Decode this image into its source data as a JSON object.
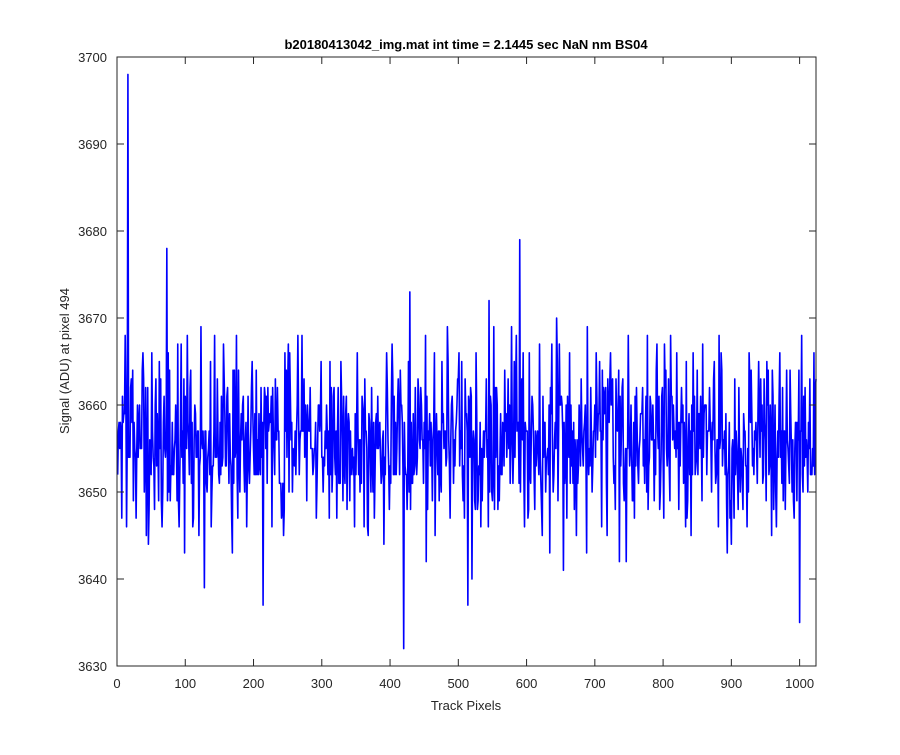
{
  "figure": {
    "background": "#ffffff"
  },
  "chart_data": {
    "type": "line",
    "title": "b20180413042_img.mat int time = 2.1445 sec  NaN nm BS04",
    "xlabel": "Track Pixels",
    "ylabel": "Signal (ADU) at pixel 494",
    "xlim": [
      0,
      1024
    ],
    "ylim": [
      3630,
      3700
    ],
    "xticks": [
      0,
      100,
      200,
      300,
      400,
      500,
      600,
      700,
      800,
      900,
      1000
    ],
    "yticks": [
      3630,
      3640,
      3650,
      3660,
      3670,
      3680,
      3690,
      3700
    ],
    "grid": false,
    "legend": "none",
    "colors": {
      "line": "#0000ff",
      "axes": "#262626"
    },
    "series": [
      {
        "n_points": 1024,
        "x_start": 1,
        "x_step": 1,
        "mean": 3656,
        "noise_std": 5.5,
        "seed": 494,
        "labeled_extremes": [
          {
            "x": 16,
            "y": 3698
          },
          {
            "x": 73,
            "y": 3678
          },
          {
            "x": 214,
            "y": 3637
          },
          {
            "x": 420,
            "y": 3632
          },
          {
            "x": 514,
            "y": 3637
          },
          {
            "x": 590,
            "y": 3679
          },
          {
            "x": 1000,
            "y": 3635
          }
        ]
      }
    ]
  }
}
